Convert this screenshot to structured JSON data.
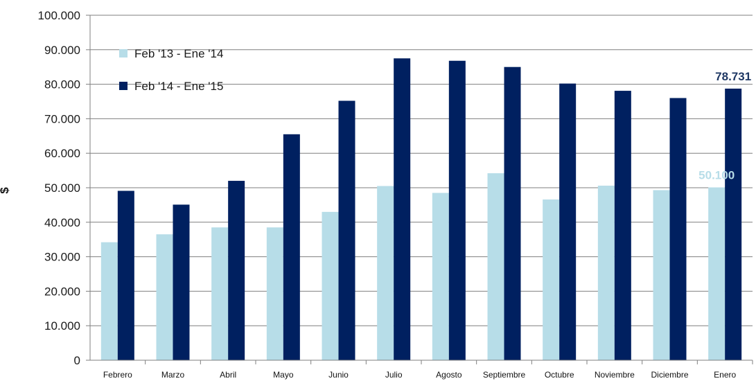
{
  "chart_data": {
    "type": "bar",
    "ylabel": "$",
    "ylim": [
      0,
      100000
    ],
    "yticks": [
      0,
      10000,
      20000,
      30000,
      40000,
      50000,
      60000,
      70000,
      80000,
      90000,
      100000
    ],
    "ytick_labels": [
      "0",
      "10.000",
      "20.000",
      "30.000",
      "40.000",
      "50.000",
      "60.000",
      "70.000",
      "80.000",
      "90.000",
      "100.000"
    ],
    "grid": true,
    "legend_position": "top-left",
    "categories": [
      "Febrero",
      "Marzo",
      "Abril",
      "Mayo",
      "Junio",
      "Julio",
      "Agosto",
      "Septiembre",
      "Octubre",
      "Noviembre",
      "Diciembre",
      "Enero"
    ],
    "series": [
      {
        "name": "Feb '13 - Ene '14",
        "color": "#b7dde8",
        "values": [
          34200,
          36500,
          38500,
          38500,
          43000,
          50500,
          48500,
          54200,
          46600,
          50600,
          49300,
          50100
        ]
      },
      {
        "name": "Feb '14 - Ene '15",
        "color": "#002060",
        "values": [
          49100,
          45100,
          52000,
          65500,
          75200,
          87500,
          86800,
          85000,
          80200,
          78100,
          76000,
          78731
        ]
      }
    ],
    "data_labels": [
      {
        "series_index": 0,
        "category_index": 11,
        "text": "50.100",
        "color": "#b7dde8"
      },
      {
        "series_index": 1,
        "category_index": 11,
        "text": "78.731",
        "color": "#1f3864"
      }
    ]
  }
}
